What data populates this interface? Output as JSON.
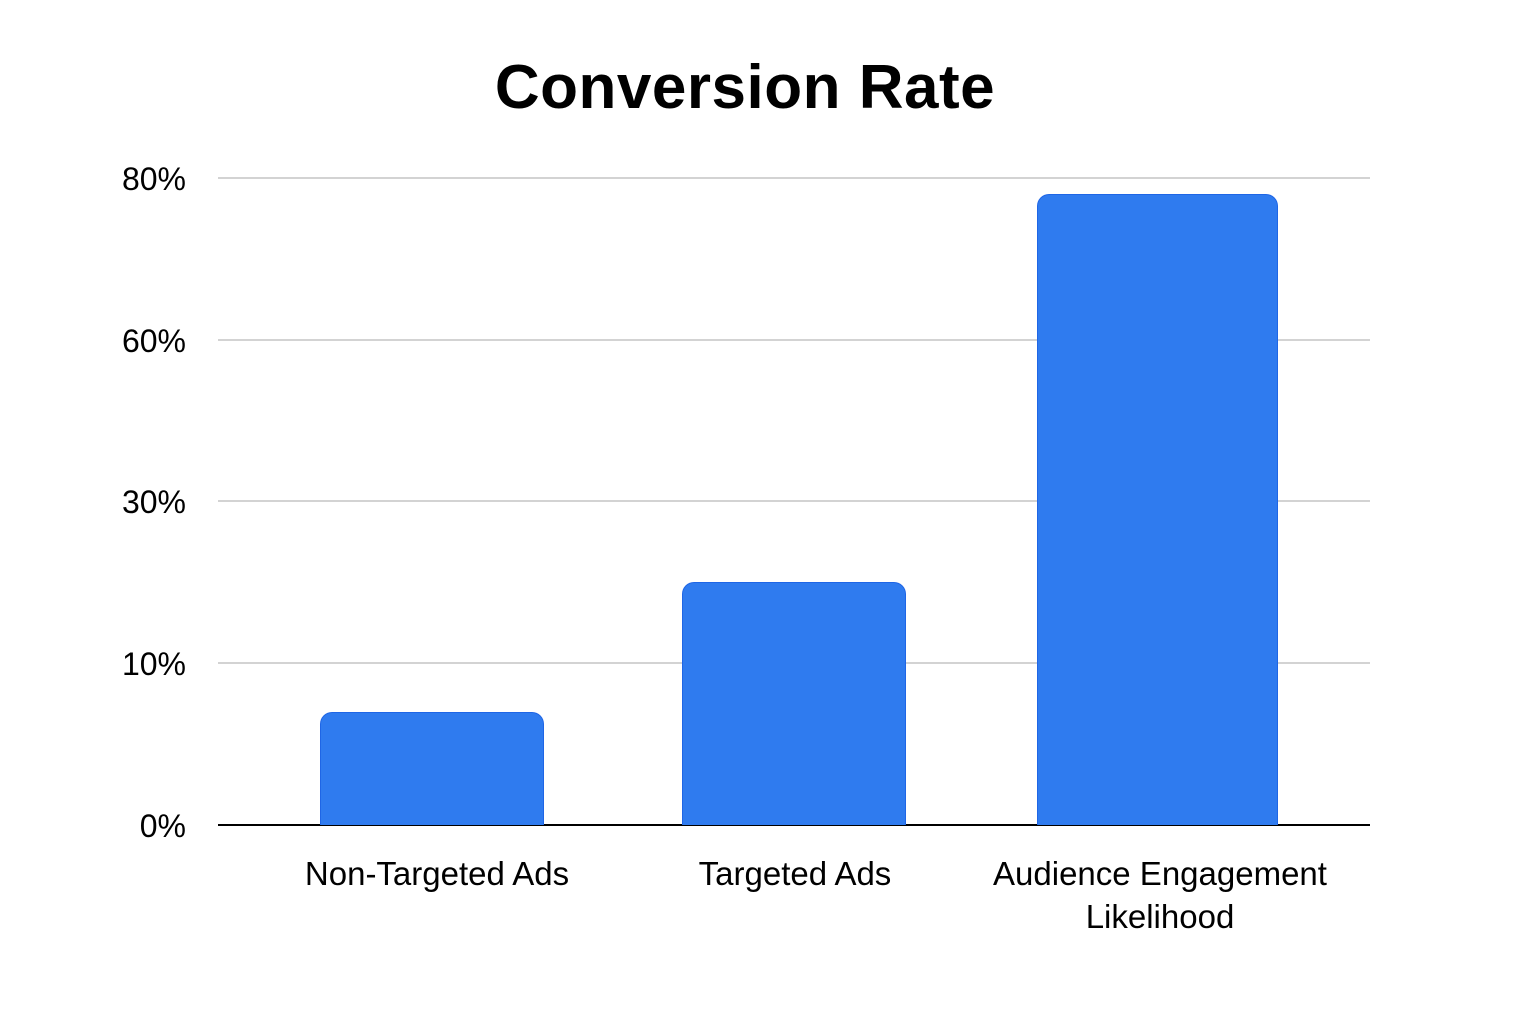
{
  "title": "Conversion Rate",
  "colors": {
    "bar": "#2f7bef",
    "grid": "#d3d3d3",
    "axis": "#000000",
    "text": "#000000"
  },
  "chart_data": {
    "type": "bar",
    "title": "Conversion Rate",
    "xlabel": "",
    "ylabel": "",
    "categories": [
      "Non-Targeted Ads",
      "Targeted Ads",
      "Audience Engagement Likelihood"
    ],
    "values": [
      7,
      20,
      78
    ],
    "unit": "%",
    "yticks": [
      "0%",
      "10%",
      "30%",
      "60%",
      "80%"
    ],
    "ytick_values": [
      0,
      10,
      30,
      60,
      80
    ],
    "ylim": [
      0,
      80
    ],
    "grid": true,
    "legend": null,
    "note": "y-axis ticks are evenly spaced but non-linear (0,10,30,60,80)"
  },
  "axis": {
    "y_ticks": [
      {
        "label": "80%",
        "value": 80
      },
      {
        "label": "60%",
        "value": 60
      },
      {
        "label": "30%",
        "value": 30
      },
      {
        "label": "10%",
        "value": 10
      },
      {
        "label": "0%",
        "value": 0
      }
    ]
  },
  "bars": [
    {
      "label": "Non-Targeted Ads",
      "value": 7
    },
    {
      "label": "Targeted Ads",
      "value": 20
    },
    {
      "label": "Audience Engagement\nLikelihood",
      "value": 78
    }
  ]
}
